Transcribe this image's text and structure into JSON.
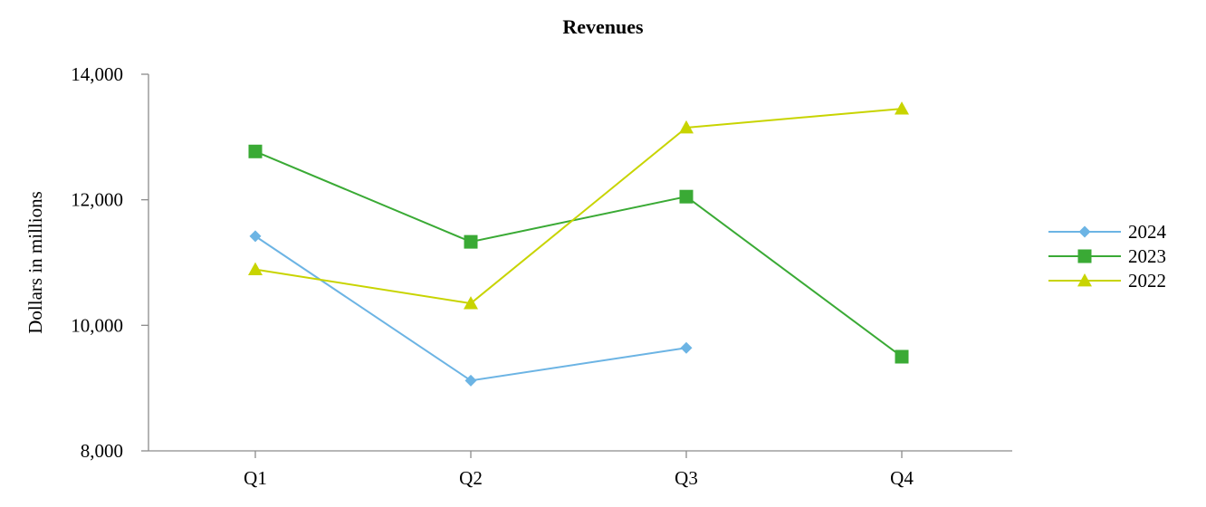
{
  "chart_data": {
    "type": "line",
    "title": "Revenues",
    "xlabel": "",
    "ylabel": "Dollars in millions",
    "categories": [
      "Q1",
      "Q2",
      "Q3",
      "Q4"
    ],
    "ylim": [
      8000,
      14000
    ],
    "yticks": [
      8000,
      10000,
      12000,
      14000
    ],
    "ytick_labels": [
      "8,000",
      "10,000",
      "12,000",
      "14,000"
    ],
    "grid": false,
    "legend_position": "right",
    "series": [
      {
        "name": "2024",
        "values": [
          11420,
          9120,
          9640,
          null
        ],
        "color": "#6cb4e4",
        "marker": "diamond"
      },
      {
        "name": "2023",
        "values": [
          12770,
          11330,
          12050,
          9500
        ],
        "color": "#3aaa35",
        "marker": "square"
      },
      {
        "name": "2022",
        "values": [
          10890,
          10350,
          13150,
          13450
        ],
        "color": "#c8d400",
        "marker": "triangle"
      }
    ]
  }
}
